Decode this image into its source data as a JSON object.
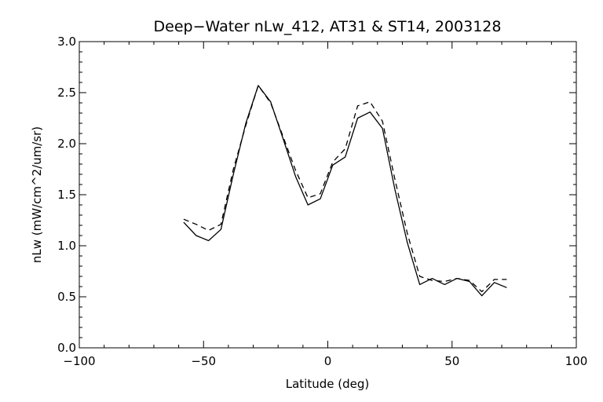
{
  "chart_data": {
    "type": "line",
    "title": "Deep−Water nLw_412, AT31 & ST14, 2003128",
    "xlabel": "Latitude (deg)",
    "ylabel": "nLw (mW/cm^2/um/sr)",
    "xlim": [
      -100,
      100
    ],
    "ylim": [
      0.0,
      3.0
    ],
    "xticks": [
      -100,
      -50,
      0,
      50,
      100
    ],
    "xtick_labels": [
      "−100",
      "−50",
      "0",
      "50",
      "100"
    ],
    "yticks": [
      0.0,
      0.5,
      1.0,
      1.5,
      2.0,
      2.5,
      3.0
    ],
    "ytick_labels": [
      "0.0",
      "0.5",
      "1.0",
      "1.5",
      "2.0",
      "2.5",
      "3.0"
    ],
    "grid": false,
    "series": [
      {
        "style": "solid",
        "color": "#000000",
        "x": [
          -58,
          -53,
          -48,
          -43,
          -38,
          -33,
          -28,
          -23,
          -18,
          -13,
          -8,
          -3,
          2,
          7,
          12,
          17,
          22,
          27,
          32,
          37,
          42,
          47,
          52,
          57,
          62,
          67,
          72
        ],
        "y": [
          1.23,
          1.1,
          1.05,
          1.16,
          1.7,
          2.2,
          2.57,
          2.41,
          2.05,
          1.68,
          1.4,
          1.46,
          1.79,
          1.87,
          2.25,
          2.31,
          2.15,
          1.55,
          1.03,
          0.62,
          0.68,
          0.62,
          0.68,
          0.65,
          0.51,
          0.64,
          0.59
        ]
      },
      {
        "style": "dashed",
        "color": "#000000",
        "x": [
          -58,
          -53,
          -48,
          -43,
          -38,
          -33,
          -28,
          -23,
          -18,
          -13,
          -8,
          -3,
          2,
          7,
          12,
          17,
          22,
          27,
          32,
          37,
          42,
          47,
          52,
          57,
          62,
          67,
          72
        ],
        "y": [
          1.26,
          1.21,
          1.15,
          1.21,
          1.75,
          2.18,
          2.57,
          2.4,
          2.07,
          1.74,
          1.47,
          1.51,
          1.82,
          1.95,
          2.37,
          2.41,
          2.22,
          1.65,
          1.12,
          0.7,
          0.66,
          0.65,
          0.68,
          0.66,
          0.55,
          0.67,
          0.67
        ]
      }
    ]
  }
}
